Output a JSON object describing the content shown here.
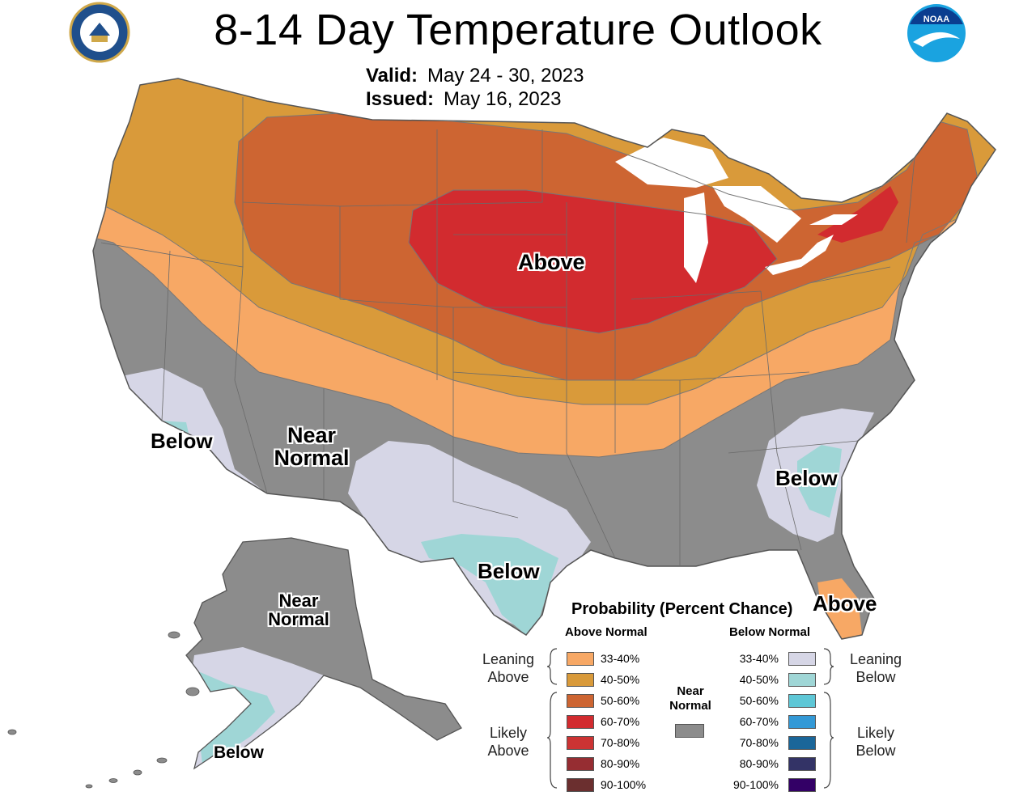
{
  "header": {
    "title": "8-14 Day Temperature Outlook",
    "valid_label": "Valid:",
    "valid_value": "May 24 - 30, 2023",
    "issued_label": "Issued:",
    "issued_value": "May 16, 2023",
    "logo_left": "Department of Commerce seal",
    "logo_right": "NOAA"
  },
  "map_labels": {
    "above_central": "Above",
    "near_normal_west_1": "Near",
    "near_normal_west_2": "Normal",
    "below_sw": "Below",
    "below_tx": "Below",
    "below_se": "Below",
    "above_fl": "Above",
    "ak_near_1": "Near",
    "ak_near_2": "Normal",
    "ak_below": "Below"
  },
  "legend": {
    "title": "Probability (Percent Chance)",
    "above_header": "Above Normal",
    "below_header": "Below Normal",
    "leaning_above_1": "Leaning",
    "leaning_above_2": "Above",
    "likely_above_1": "Likely",
    "likely_above_2": "Above",
    "leaning_below_1": "Leaning",
    "leaning_below_2": "Below",
    "likely_below_1": "Likely",
    "likely_below_2": "Below",
    "near_normal_1": "Near",
    "near_normal_2": "Normal",
    "above_items": [
      {
        "label": "33-40%",
        "color": "#f7a865"
      },
      {
        "label": "40-50%",
        "color": "#d99a3a"
      },
      {
        "label": "50-60%",
        "color": "#cd6532"
      },
      {
        "label": "60-70%",
        "color": "#d22b2f"
      },
      {
        "label": "70-80%",
        "color": "#cc3333"
      },
      {
        "label": "80-90%",
        "color": "#962d32"
      },
      {
        "label": "90-100%",
        "color": "#6b2f2f"
      }
    ],
    "below_items": [
      {
        "label": "33-40%",
        "color": "#d6d6e6"
      },
      {
        "label": "40-50%",
        "color": "#9fd6d6"
      },
      {
        "label": "50-60%",
        "color": "#5ec7d6"
      },
      {
        "label": "60-70%",
        "color": "#3399d6"
      },
      {
        "label": "70-80%",
        "color": "#1a6699"
      },
      {
        "label": "80-90%",
        "color": "#333366"
      },
      {
        "label": "90-100%",
        "color": "#330066"
      }
    ],
    "near_normal_color": "#8c8c8c"
  },
  "colors": {
    "lean_above": "#f7a865",
    "above_40_50": "#d99a3a",
    "above_50_60": "#cd6532",
    "above_60_70": "#d22b2f",
    "near_normal": "#8c8c8c",
    "lean_below": "#d6d6e6",
    "below_40_50": "#9fd6d6",
    "water": "#ffffff"
  }
}
